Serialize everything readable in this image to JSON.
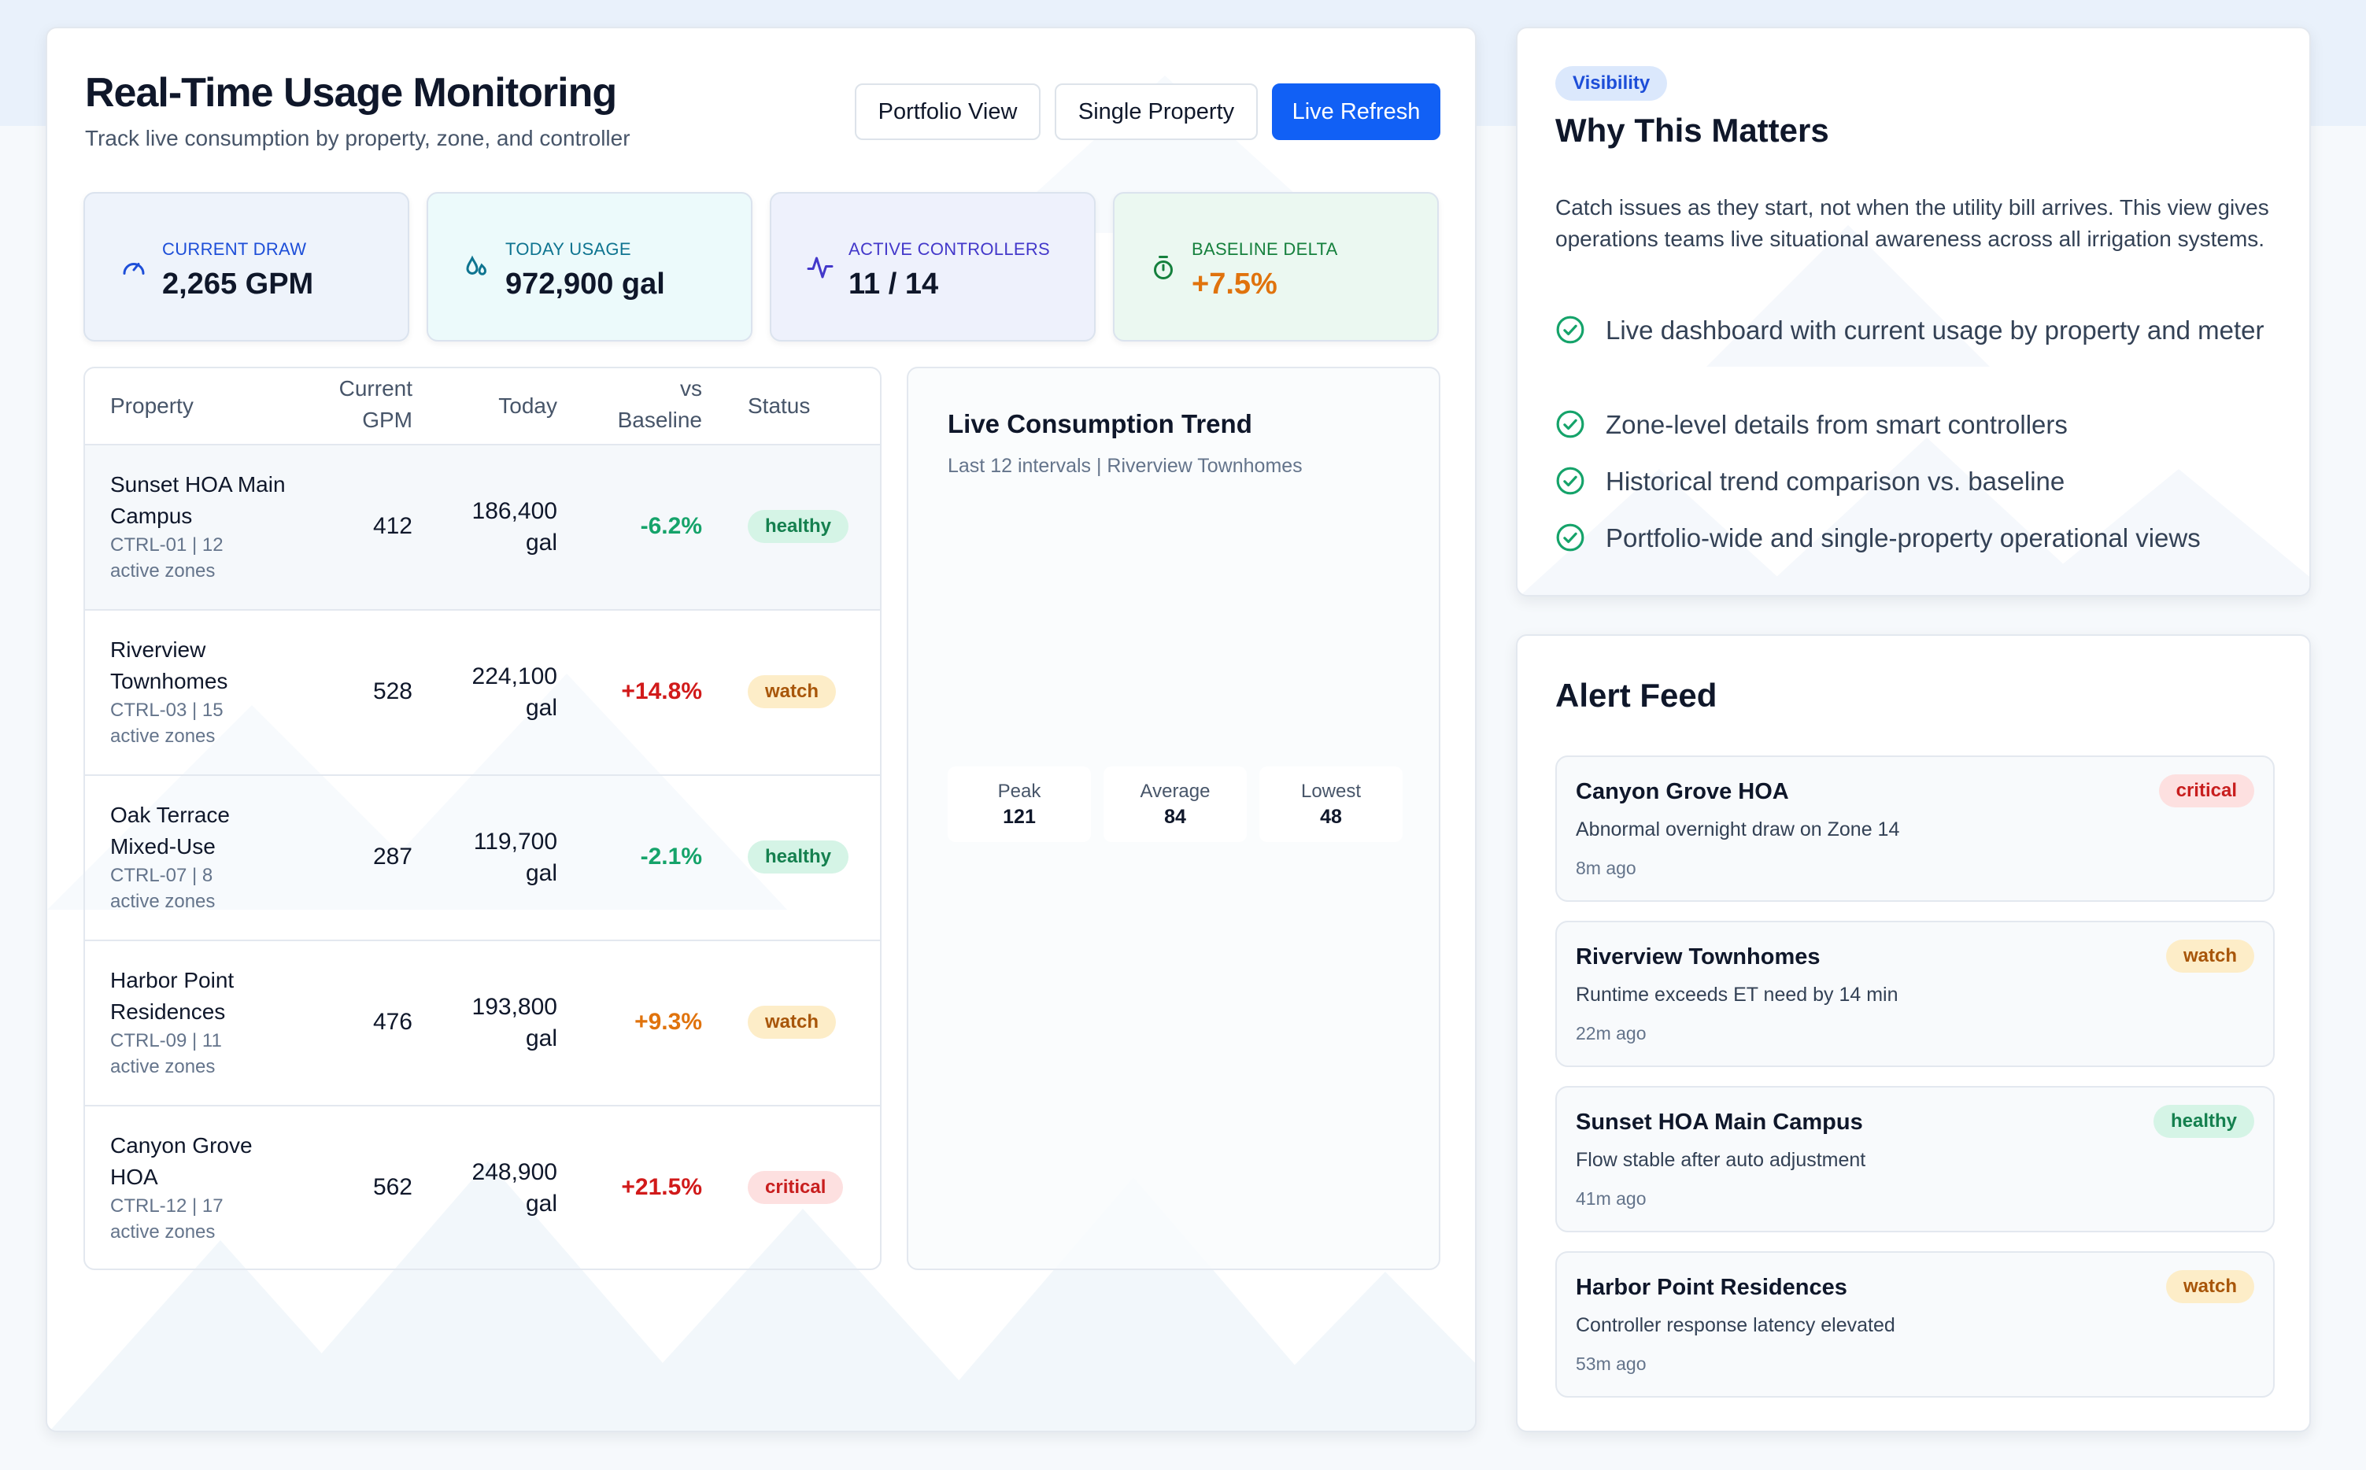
{
  "header": {
    "title": "Real-Time Usage Monitoring",
    "subtitle": "Track live consumption by property, zone, and controller",
    "buttons": {
      "portfolio": "Portfolio View",
      "single": "Single Property",
      "refresh": "Live Refresh"
    }
  },
  "kpis": [
    {
      "label": "Current Draw",
      "value": "2,265 GPM",
      "icon": "gauge-icon",
      "label_color": "#1d4ed8"
    },
    {
      "label": "Today Usage",
      "value": "972,900 gal",
      "icon": "water-drops-icon",
      "label_color": "#0e7490"
    },
    {
      "label": "Active Controllers",
      "value": "11 / 14",
      "icon": "activity-pulse-icon",
      "label_color": "#4338ca"
    },
    {
      "label": "Baseline Delta",
      "value": "+7.5%",
      "icon": "stopwatch-icon",
      "label_color": "#15803d",
      "value_color": "#e0730d"
    }
  ],
  "table": {
    "headers": {
      "property": "Property",
      "current_gpm": "Current GPM",
      "today": "Today",
      "vs_baseline": "vs Baseline",
      "status": "Status"
    },
    "rows": [
      {
        "name": "Sunset HOA Main Campus",
        "meta": "CTRL-01 | 12 active zones",
        "gpm": "412",
        "today": "186,400 gal",
        "delta": "-6.2%",
        "status": "healthy"
      },
      {
        "name": "Riverview Townhomes",
        "meta": "CTRL-03 | 15 active zones",
        "gpm": "528",
        "today": "224,100 gal",
        "delta": "+14.8%",
        "status": "watch"
      },
      {
        "name": "Oak Terrace Mixed-Use",
        "meta": "CTRL-07 | 8 active zones",
        "gpm": "287",
        "today": "119,700 gal",
        "delta": "-2.1%",
        "status": "healthy"
      },
      {
        "name": "Harbor Point Residences",
        "meta": "CTRL-09 | 11 active zones",
        "gpm": "476",
        "today": "193,800 gal",
        "delta": "+9.3%",
        "status": "watch"
      },
      {
        "name": "Canyon Grove HOA",
        "meta": "CTRL-12 | 17 active zones",
        "gpm": "562",
        "today": "248,900 gal",
        "delta": "+21.5%",
        "status": "critical"
      }
    ]
  },
  "trend": {
    "title": "Live Consumption Trend",
    "subtitle": "Last 12 intervals | Riverview Townhomes",
    "stats": [
      {
        "label": "Peak",
        "value": "121"
      },
      {
        "label": "Average",
        "value": "84"
      },
      {
        "label": "Lowest",
        "value": "48"
      }
    ]
  },
  "why": {
    "pill": "Visibility",
    "title": "Why This Matters",
    "text": "Catch issues as they start, not when the utility bill arrives. This view gives operations teams live situational awareness across all irrigation systems.",
    "features": [
      "Live dashboard with current usage by property and meter",
      "Zone-level details from smart controllers",
      "Historical trend comparison vs. baseline",
      "Portfolio-wide and single-property operational views"
    ]
  },
  "alerts": {
    "title": "Alert Feed",
    "items": [
      {
        "title": "Canyon Grove HOA",
        "desc": "Abnormal overnight draw on Zone 14",
        "time": "8m ago",
        "status": "critical"
      },
      {
        "title": "Riverview Townhomes",
        "desc": "Runtime exceeds ET need by 14 min",
        "time": "22m ago",
        "status": "watch"
      },
      {
        "title": "Sunset HOA Main Campus",
        "desc": "Flow stable after auto adjustment",
        "time": "41m ago",
        "status": "healthy"
      },
      {
        "title": "Harbor Point Residences",
        "desc": "Controller response latency elevated",
        "time": "53m ago",
        "status": "watch"
      }
    ]
  },
  "colors": {
    "accent": "#1160f5",
    "positive": "#15a36a",
    "warning": "#e0730d",
    "danger": "#d11a1a"
  }
}
